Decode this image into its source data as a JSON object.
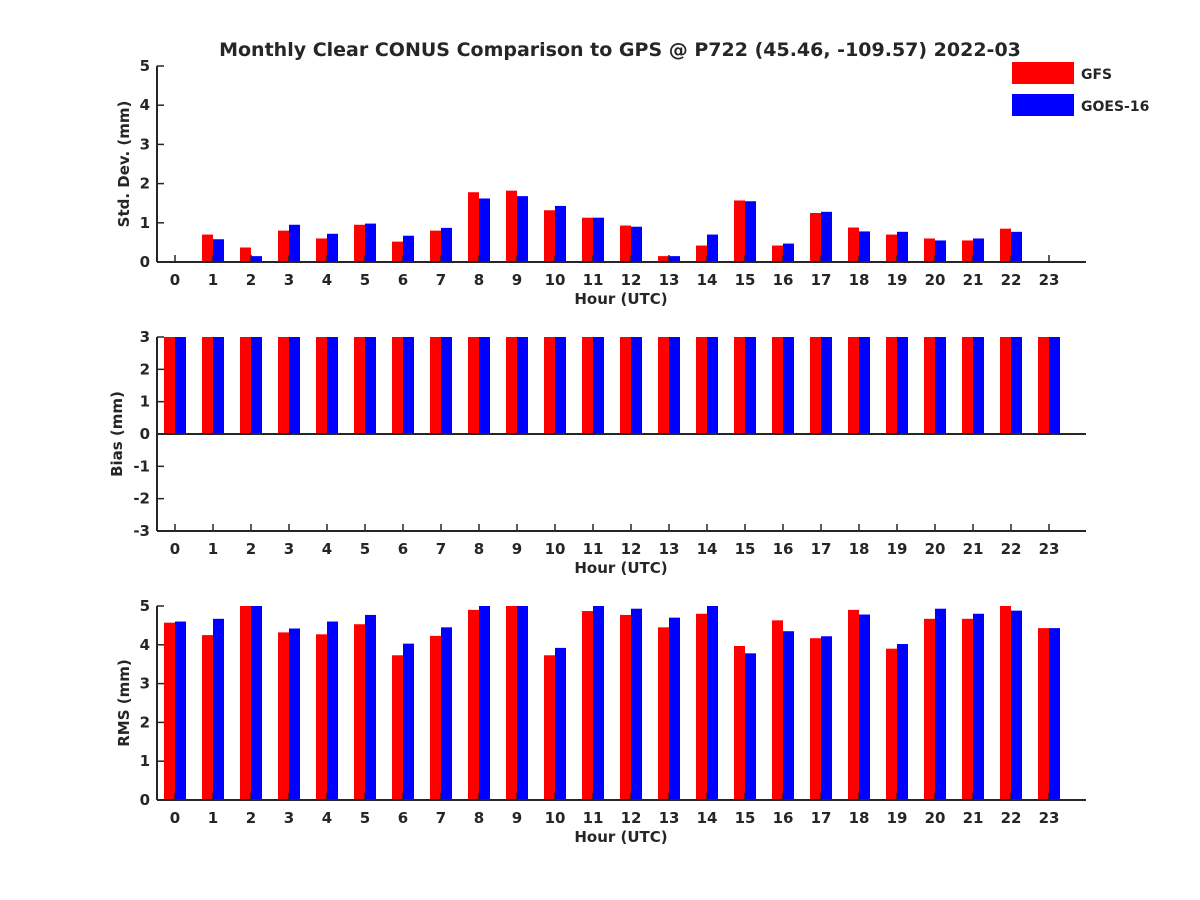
{
  "figure_title": "Monthly Clear CONUS Comparison to GPS @ P722 (45.46, -109.57) 2022-03",
  "legend": {
    "entries": [
      {
        "label": "GFS",
        "color": "#ff0000"
      },
      {
        "label": "GOES-16",
        "color": "#0000ff"
      }
    ],
    "placement": "top-right"
  },
  "colors": {
    "gfs": "#ff0000",
    "goes": "#0000ff",
    "axis": "#262626"
  },
  "chart_data": [
    {
      "type": "bar",
      "title": "Monthly Clear CONUS Comparison to GPS @ P722 (45.46, -109.57) 2022-03",
      "xlabel": "Hour (UTC)",
      "ylabel": "Std. Dev. (mm)",
      "ylim": [
        0,
        5
      ],
      "yticks": [
        0,
        1,
        2,
        3,
        4,
        5
      ],
      "grid": false,
      "categories": [
        "0",
        "1",
        "2",
        "3",
        "4",
        "5",
        "6",
        "7",
        "8",
        "9",
        "10",
        "11",
        "12",
        "13",
        "14",
        "15",
        "16",
        "17",
        "18",
        "19",
        "20",
        "21",
        "22",
        "23"
      ],
      "series": [
        {
          "name": "GFS",
          "color": "#ff0000",
          "values": [
            0,
            0.7,
            0.37,
            0.8,
            0.6,
            0.95,
            0.52,
            0.8,
            1.78,
            1.82,
            1.32,
            1.13,
            0.93,
            0.15,
            0.42,
            1.57,
            0.42,
            1.25,
            0.88,
            0.7,
            0.6,
            0.55,
            0.85,
            0
          ]
        },
        {
          "name": "GOES-16",
          "color": "#0000ff",
          "values": [
            0,
            0.58,
            0.15,
            0.95,
            0.72,
            0.98,
            0.67,
            0.87,
            1.62,
            1.68,
            1.43,
            1.13,
            0.9,
            0.15,
            0.7,
            1.55,
            0.47,
            1.28,
            0.78,
            0.77,
            0.55,
            0.6,
            0.77,
            0
          ]
        }
      ]
    },
    {
      "type": "bar",
      "xlabel": "Hour (UTC)",
      "ylabel": "Bias (mm)",
      "ylim": [
        -3,
        3
      ],
      "yticks": [
        -3,
        -2,
        -1,
        0,
        1,
        2,
        3
      ],
      "grid": false,
      "categories": [
        "0",
        "1",
        "2",
        "3",
        "4",
        "5",
        "6",
        "7",
        "8",
        "9",
        "10",
        "11",
        "12",
        "13",
        "14",
        "15",
        "16",
        "17",
        "18",
        "19",
        "20",
        "21",
        "22",
        "23"
      ],
      "series": [
        {
          "name": "GFS",
          "color": "#ff0000",
          "values": [
            3,
            3,
            3,
            3,
            3,
            3,
            3,
            3,
            3,
            3,
            3,
            3,
            3,
            3,
            3,
            3,
            3,
            3,
            3,
            3,
            3,
            3,
            3,
            3
          ]
        },
        {
          "name": "GOES-16",
          "color": "#0000ff",
          "values": [
            3,
            3,
            3,
            3,
            3,
            3,
            3,
            3,
            3,
            3,
            3,
            3,
            3,
            3,
            3,
            3,
            3,
            3,
            3,
            3,
            3,
            3,
            3,
            3
          ]
        }
      ]
    },
    {
      "type": "bar",
      "xlabel": "Hour (UTC)",
      "ylabel": "RMS (mm)",
      "ylim": [
        0,
        5
      ],
      "yticks": [
        0,
        1,
        2,
        3,
        4,
        5
      ],
      "grid": false,
      "categories": [
        "0",
        "1",
        "2",
        "3",
        "4",
        "5",
        "6",
        "7",
        "8",
        "9",
        "10",
        "11",
        "12",
        "13",
        "14",
        "15",
        "16",
        "17",
        "18",
        "19",
        "20",
        "21",
        "22",
        "23"
      ],
      "series": [
        {
          "name": "GFS",
          "color": "#ff0000",
          "values": [
            4.57,
            4.25,
            5,
            4.32,
            4.27,
            4.53,
            3.73,
            4.23,
            4.9,
            5,
            3.73,
            4.87,
            4.77,
            4.45,
            4.8,
            3.97,
            4.63,
            4.17,
            4.9,
            3.9,
            4.67,
            4.67,
            5,
            4.43
          ]
        },
        {
          "name": "GOES-16",
          "color": "#0000ff",
          "values": [
            4.6,
            4.67,
            5,
            4.42,
            4.6,
            4.77,
            4.03,
            4.45,
            5,
            5,
            3.92,
            5,
            4.93,
            4.7,
            5,
            3.78,
            4.35,
            4.22,
            4.78,
            4.02,
            4.93,
            4.8,
            4.88,
            4.43
          ]
        }
      ]
    }
  ]
}
